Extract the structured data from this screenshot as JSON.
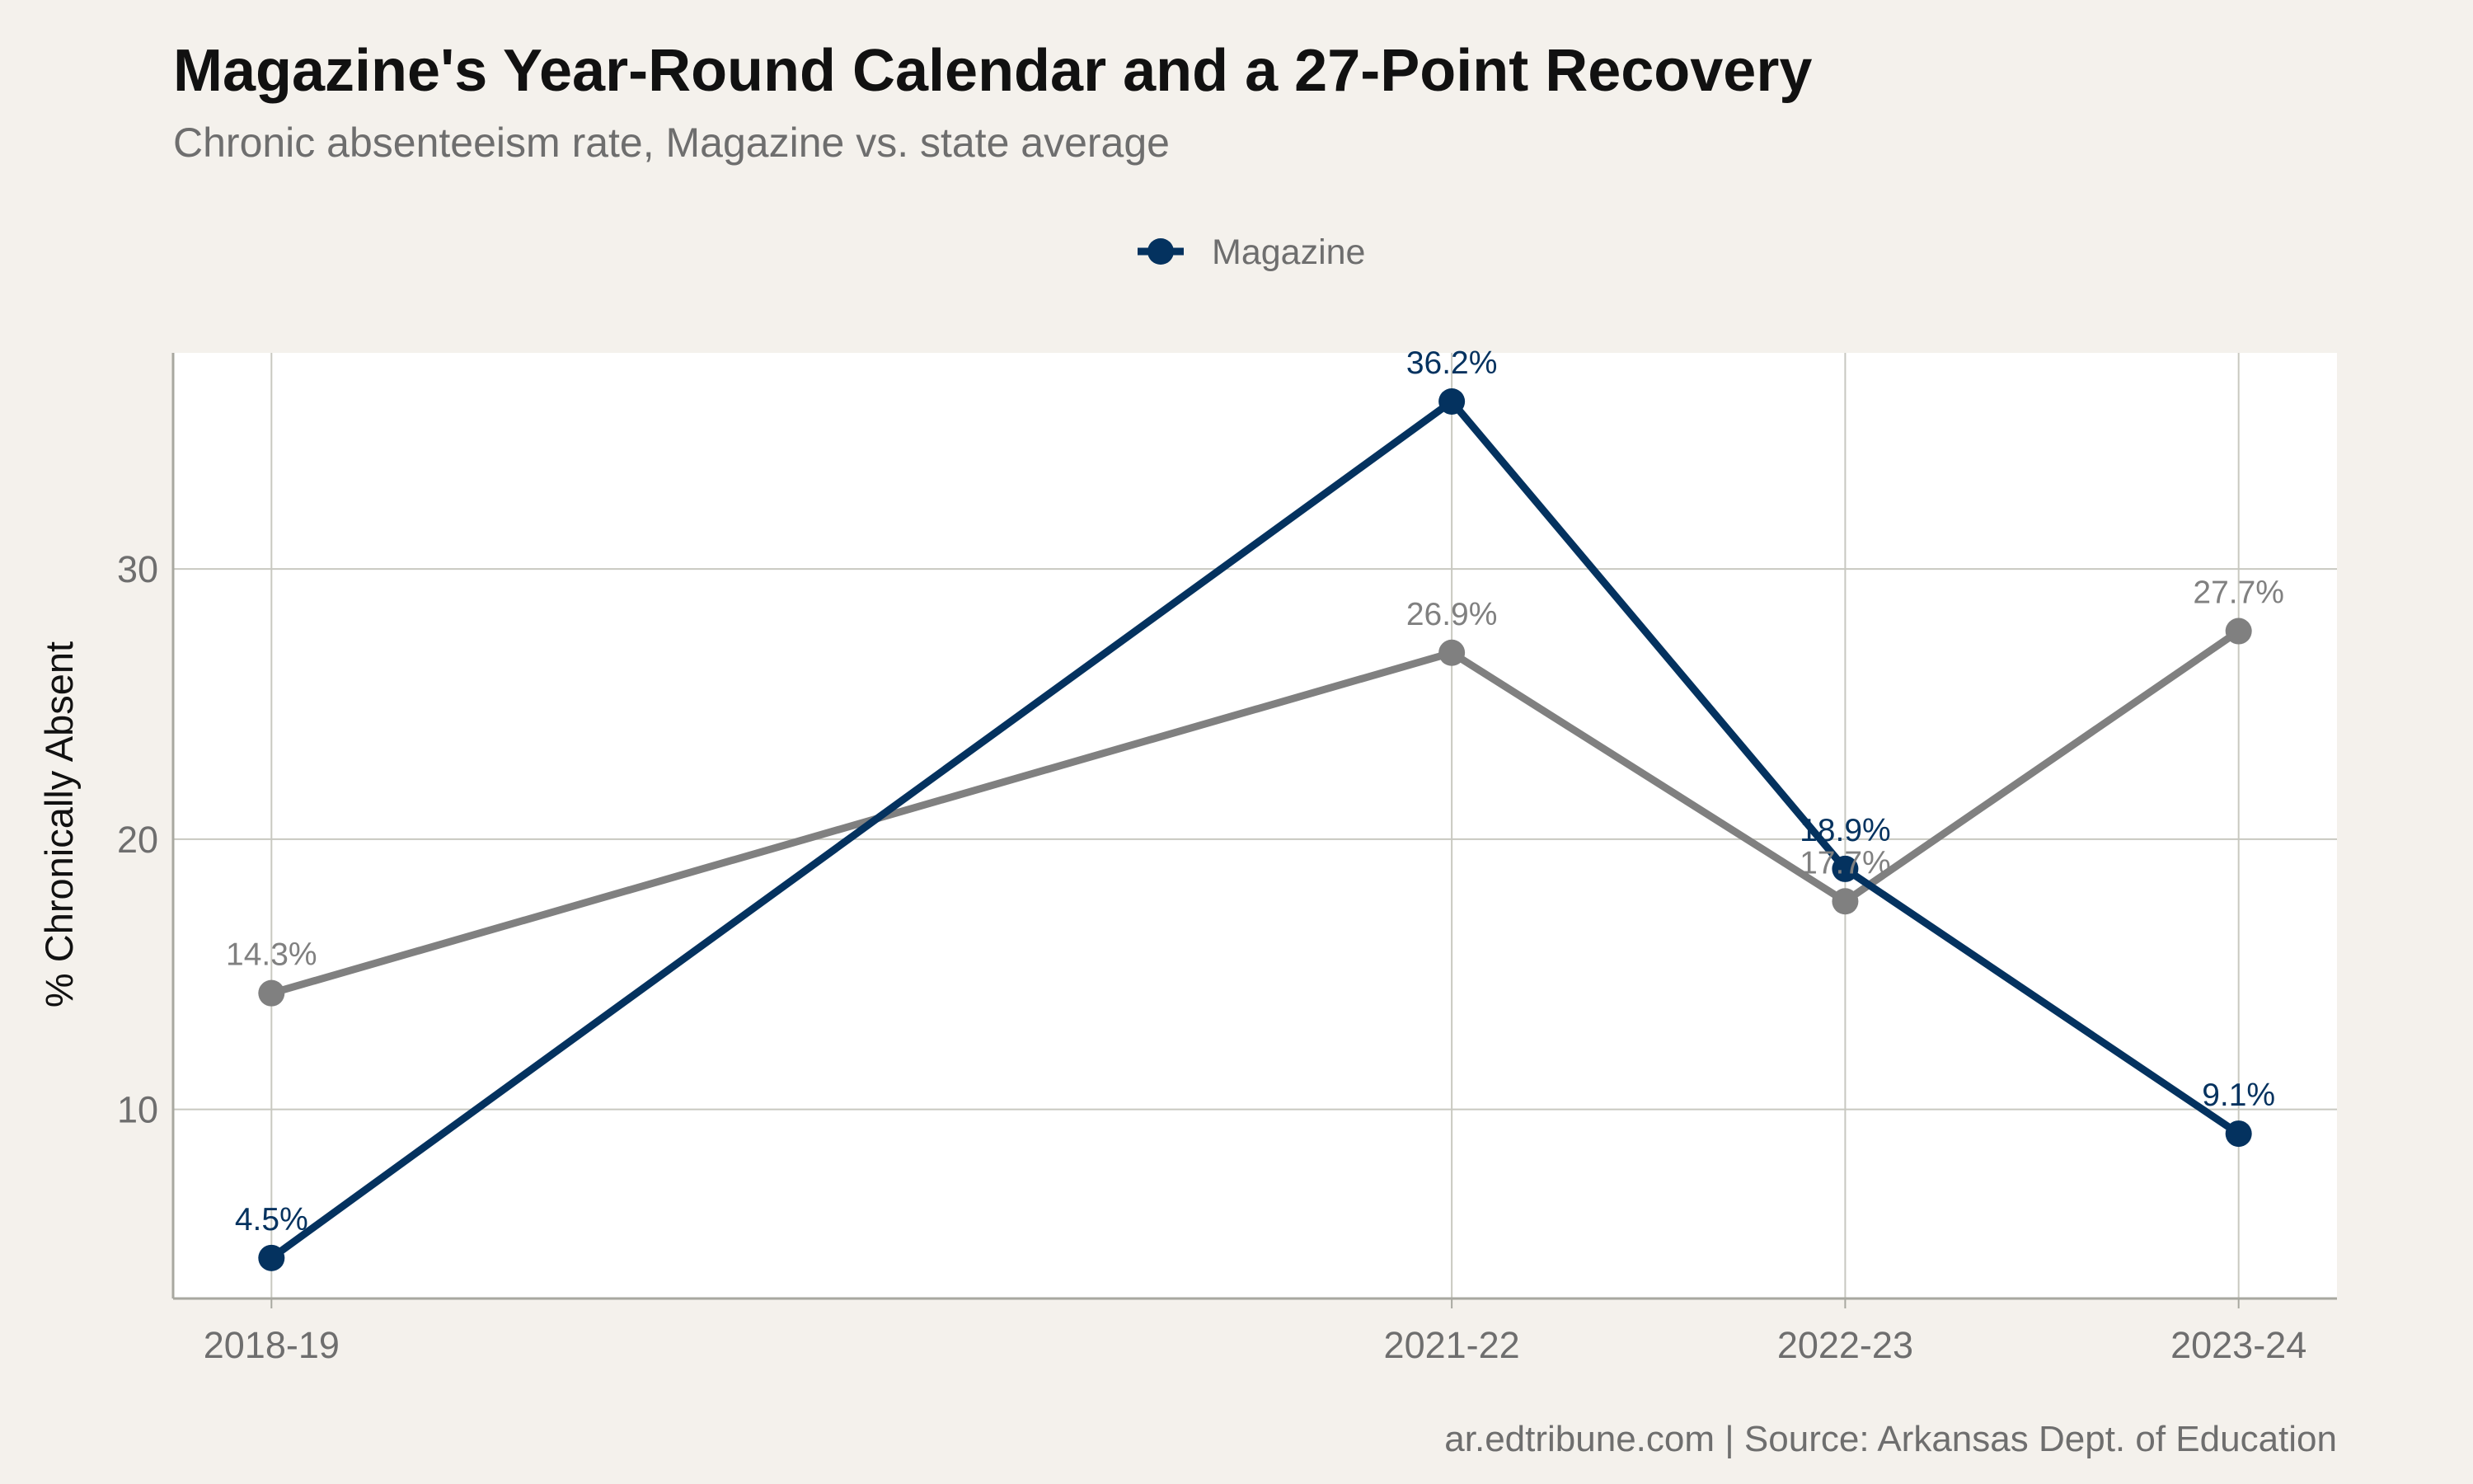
{
  "chart_data": {
    "type": "line",
    "title": "Magazine's Year-Round Calendar and a 27-Point Recovery",
    "subtitle": "Chronic absenteeism rate, Magazine vs. state average",
    "xlabel": "",
    "ylabel": "% Chronically Absent",
    "x_ticks": [
      "2018-19",
      "2021-22",
      "2022-23",
      "2023-24"
    ],
    "x_positions": [
      2018.5,
      2021.5,
      2022.5,
      2023.5
    ],
    "xlim": [
      2018.25,
      2023.75
    ],
    "ylim": [
      3.0,
      38.0
    ],
    "y_ticks": [
      10,
      20,
      30
    ],
    "grid": true,
    "legend_position": "top",
    "legend_entries": [
      "Magazine"
    ],
    "series": [
      {
        "name": "Magazine",
        "color": "#04325f",
        "values": [
          4.5,
          36.2,
          18.9,
          9.1
        ],
        "labels": [
          "4.5%",
          "36.2%",
          "18.9%",
          "9.1%"
        ]
      },
      {
        "color": "#808080",
        "values": [
          14.3,
          26.9,
          17.7,
          27.7
        ],
        "labels": [
          "14.3%",
          "26.9%",
          "17.7%",
          "27.7%"
        ]
      }
    ],
    "caption": "ar.edtribune.com | Source: Arkansas Dept. of Education",
    "colors": {
      "background": "#f4f1ec",
      "panel": "#ffffff",
      "grid": "#c8c8c0",
      "text_dark": "#111111",
      "text_muted": "#6e6e6e"
    }
  }
}
